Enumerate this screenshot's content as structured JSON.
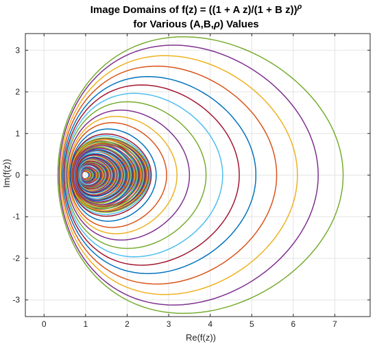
{
  "chart_data": {
    "type": "line",
    "title_line1": "Image Domains of f(z) = ((1 + A z)/(1 + B z))",
    "title_sup": "ρ",
    "title_line2_pre": "for Various (A,B,",
    "title_line2_sym": "ρ",
    "title_line2_post": ") Values",
    "xlabel": "Re(f(z))",
    "ylabel": "Im(f(z))",
    "xlim": [
      -0.45,
      7.85
    ],
    "ylim": [
      -3.4,
      3.4
    ],
    "xticks": [
      0,
      1,
      2,
      3,
      4,
      5,
      6,
      7
    ],
    "yticks": [
      -3,
      -2,
      -1,
      0,
      1,
      2,
      3
    ],
    "grid": true,
    "colors": [
      "#0072BD",
      "#D95319",
      "#EDB120",
      "#7E2F8E",
      "#77AC30",
      "#4DBEEE",
      "#A2142F"
    ],
    "curve_shape": "closed near-circular loops around the point (1, 0)",
    "largest_curves": [
      {
        "min_re": 0.33,
        "max_re": 7.2,
        "max_im": 3.3
      },
      {
        "min_re": 0.36,
        "max_re": 6.6,
        "max_im": 3.1
      },
      {
        "min_re": 0.39,
        "max_re": 6.1,
        "max_im": 2.85
      },
      {
        "min_re": 0.42,
        "max_re": 5.6,
        "max_im": 2.6
      },
      {
        "min_re": 0.45,
        "max_re": 5.1,
        "max_im": 2.35
      },
      {
        "min_re": 0.48,
        "max_re": 4.7,
        "max_im": 2.15
      },
      {
        "min_re": 0.5,
        "max_re": 4.3,
        "max_im": 1.95
      },
      {
        "min_re": 0.52,
        "max_re": 3.9,
        "max_im": 1.75
      },
      {
        "min_re": 0.55,
        "max_re": 3.5,
        "max_im": 1.55
      },
      {
        "min_re": 0.58,
        "max_re": 3.2,
        "max_im": 1.4
      },
      {
        "min_re": 0.6,
        "max_re": 2.95,
        "max_im": 1.25
      },
      {
        "min_re": 0.63,
        "max_re": 2.7,
        "max_im": 1.1
      }
    ]
  }
}
